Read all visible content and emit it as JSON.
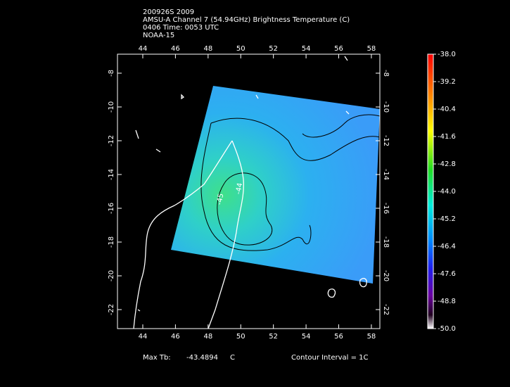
{
  "chart_data": {
    "type": "map",
    "title_lines": [
      "200926S 2009",
      "AMSU-A Channel 7 (54.94GHz) Brightness Temperature (C)",
      "0406 Time: 0053 UTC",
      "NOAA-15"
    ],
    "xlim": [
      42.45,
      58.52
    ],
    "xticks": [
      44,
      46,
      48,
      50,
      52,
      54,
      56,
      58
    ],
    "ylim": [
      -23.125,
      -6.875
    ],
    "yticks": [
      -8,
      -10,
      -12,
      -14,
      -16,
      -18,
      -20,
      -22
    ],
    "colorbar": {
      "lim": [
        -50,
        -38
      ],
      "ticks": [
        {
          "value": -38,
          "label": "-38.0"
        },
        {
          "value": -39.2,
          "label": "-39.2"
        },
        {
          "value": -40.4,
          "label": "-40.4"
        },
        {
          "value": -41.6,
          "label": "-41.6"
        },
        {
          "value": -42.8,
          "label": "-42.8"
        },
        {
          "value": -44,
          "label": "-44.0"
        },
        {
          "value": -45.2,
          "label": "-45.2"
        },
        {
          "value": -46.4,
          "label": "-46.4"
        },
        {
          "value": -47.6,
          "label": "-47.6"
        },
        {
          "value": -48.8,
          "label": "-48.8"
        },
        {
          "value": -50,
          "label": "-50.0"
        }
      ]
    },
    "contour_labels": [
      "-44",
      "-45"
    ],
    "max_tb_label": "Max Tb:",
    "max_tb": -43.4894,
    "max_tb_unit": "C",
    "contour_interval": "Contour Interval = 1C"
  }
}
